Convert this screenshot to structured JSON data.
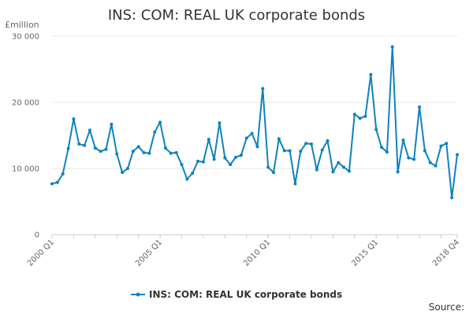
{
  "chart_data": {
    "type": "line",
    "title": "INS: COM: REAL UK corporate bonds",
    "ylabel": "£million",
    "xlabel": "",
    "ylim": [
      0,
      30000
    ],
    "yticks": [
      0,
      10000,
      20000,
      30000
    ],
    "ytick_labels": [
      "0",
      "10 000",
      "20 000",
      "30 000"
    ],
    "xtick_labels": [
      {
        "label": "2000 Q1",
        "index": 0
      },
      {
        "label": "2005 Q1",
        "index": 20
      },
      {
        "label": "2010 Q1",
        "index": 40
      },
      {
        "label": "2015 Q1",
        "index": 60
      },
      {
        "label": "2018 Q4",
        "index": 75
      }
    ],
    "grid": true,
    "legend_position": "bottom",
    "color": "#0f82bd",
    "source": "Source:",
    "series": [
      {
        "name": "INS: COM: REAL UK corporate bonds",
        "values": [
          7700,
          7900,
          9200,
          13000,
          17500,
          13700,
          13500,
          15800,
          13100,
          12600,
          12900,
          16700,
          12200,
          9400,
          10000,
          12600,
          13300,
          12400,
          12300,
          15500,
          17000,
          13100,
          12300,
          12400,
          10600,
          8400,
          9300,
          11100,
          11000,
          14400,
          11400,
          16900,
          11600,
          10600,
          11700,
          12000,
          14600,
          15300,
          13300,
          22100,
          10200,
          9400,
          14500,
          12700,
          12700,
          7700,
          12600,
          13800,
          13700,
          9800,
          12800,
          14200,
          9500,
          10900,
          10200,
          9600,
          18200,
          17600,
          17900,
          24200,
          15900,
          13200,
          12500,
          28400,
          9500,
          14300,
          11600,
          11400,
          19300,
          12700,
          10900,
          10400,
          13400,
          13800,
          5600,
          12100
        ]
      }
    ]
  }
}
